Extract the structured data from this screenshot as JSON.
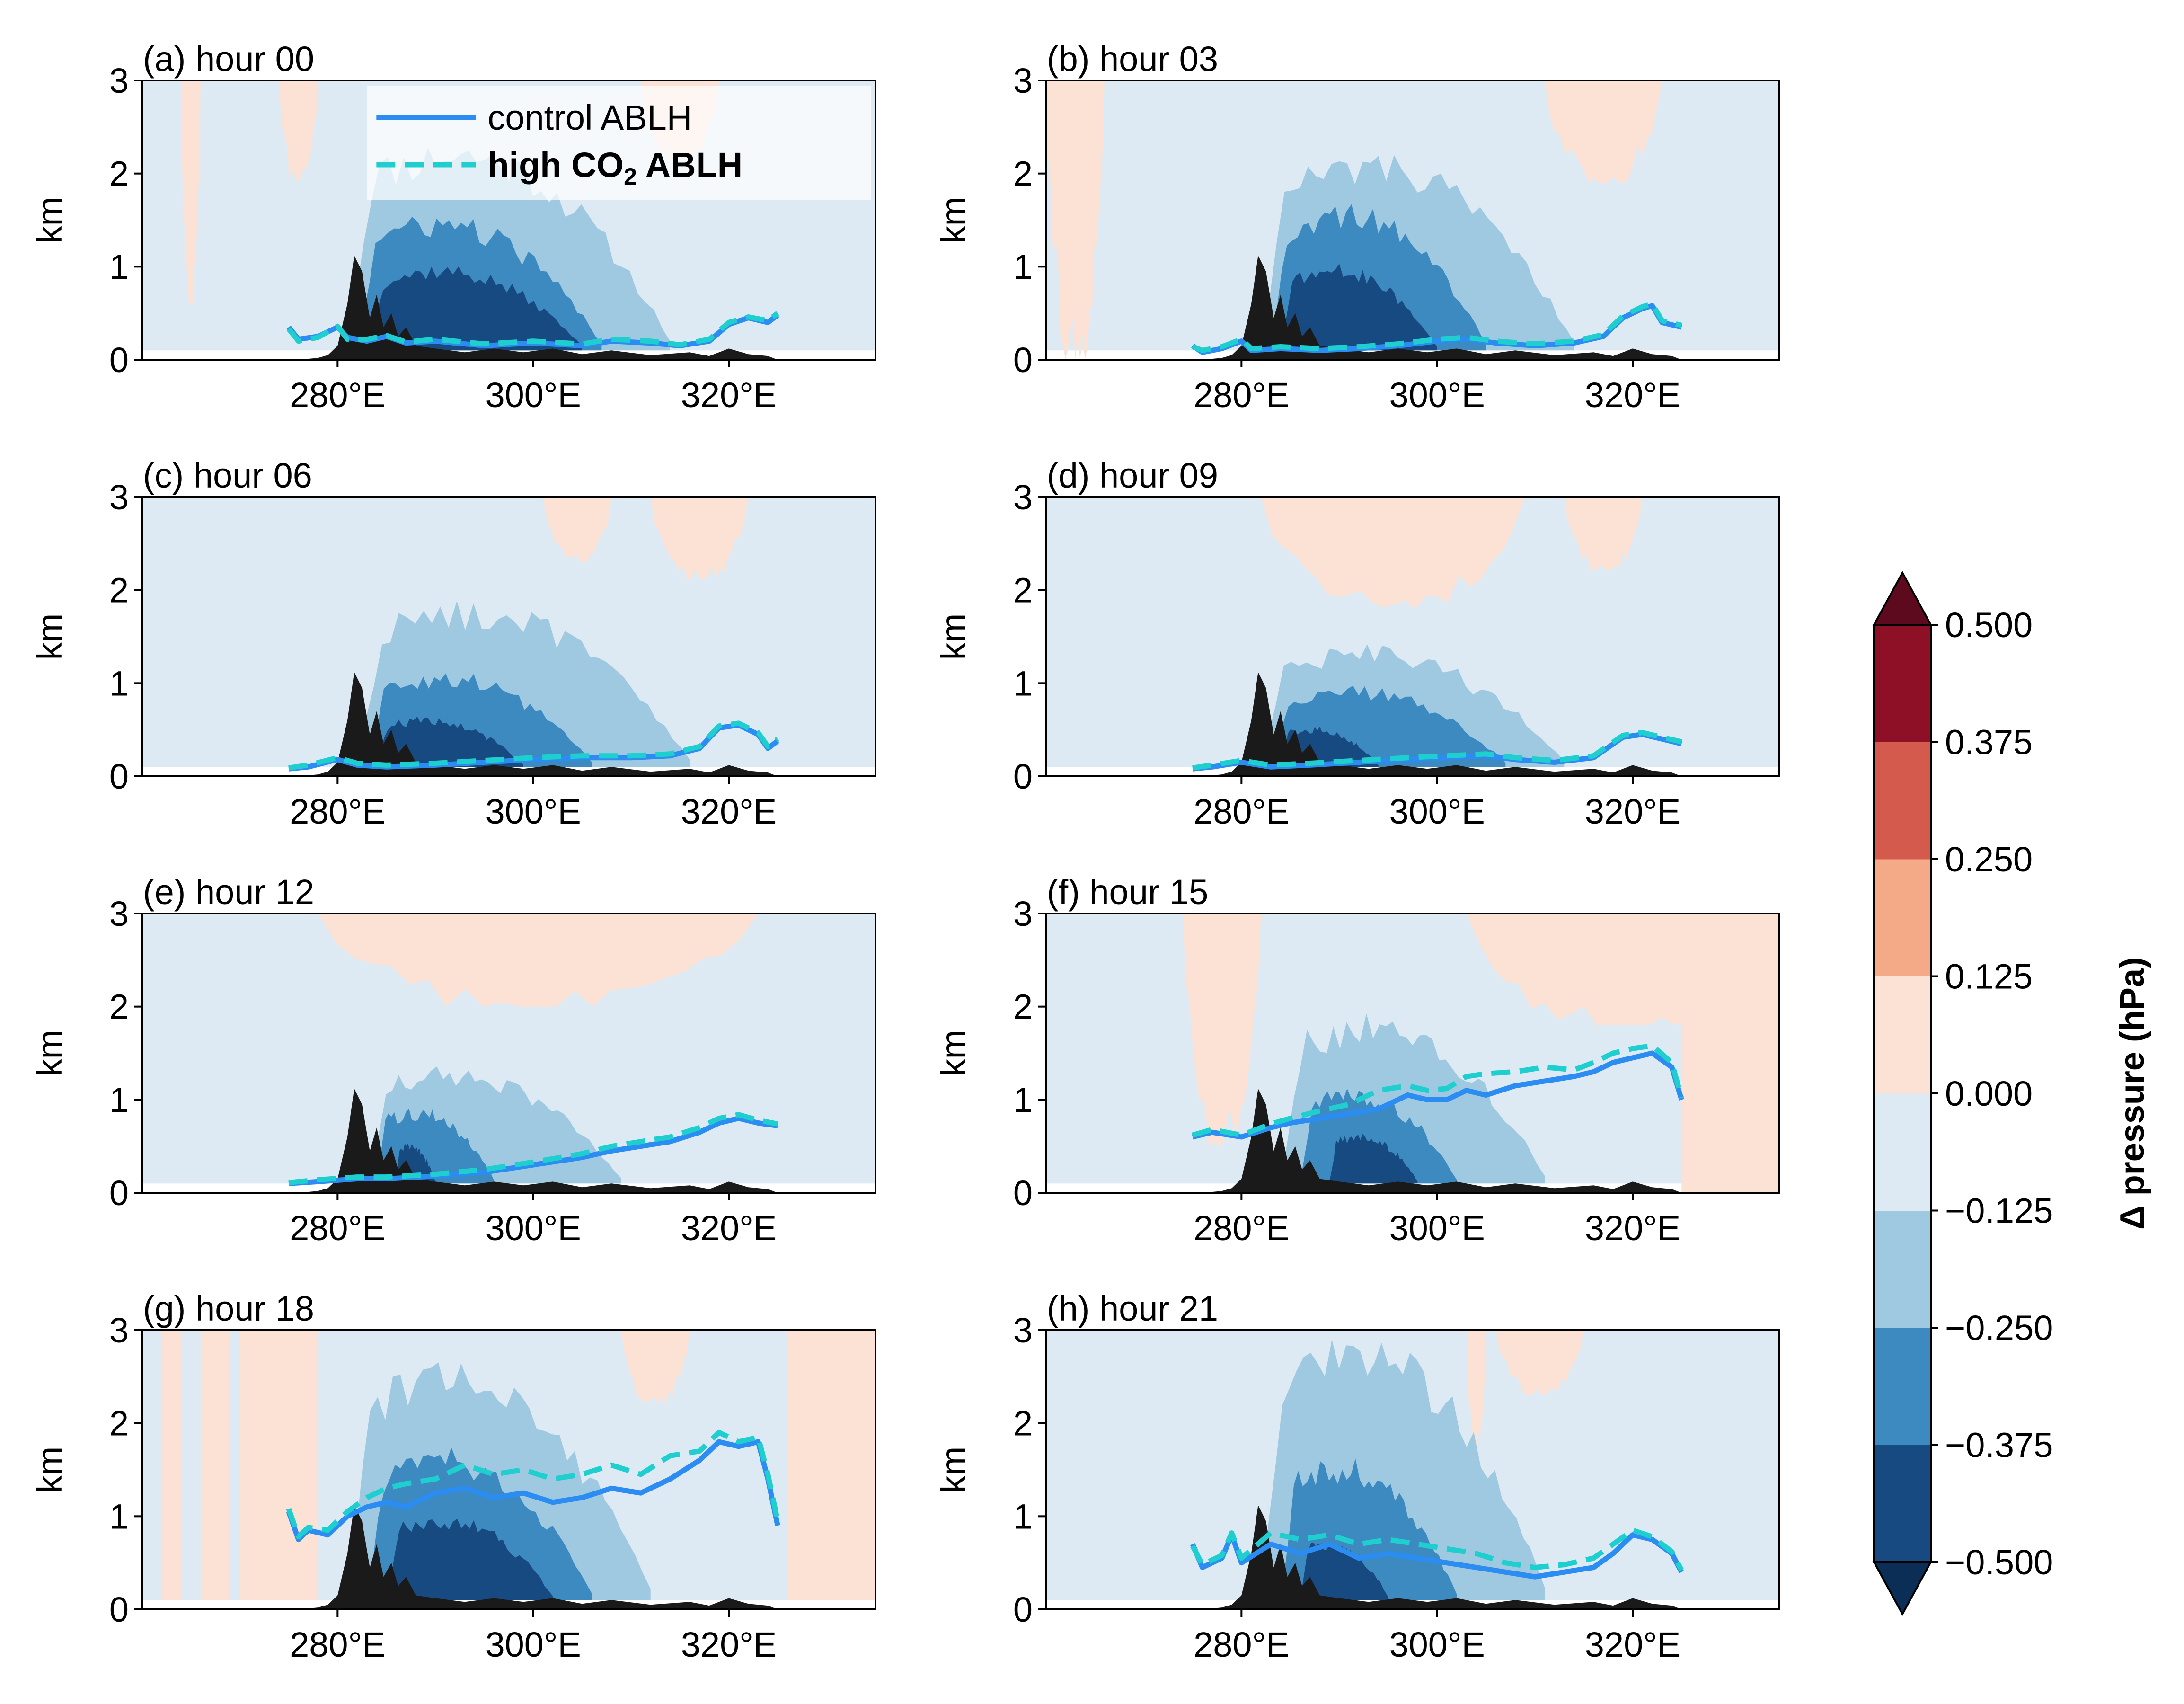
{
  "chart_data": {
    "type": "filled-contour cross-section panels",
    "panels": [
      {
        "title": "(a) hour 00",
        "hour": 0
      },
      {
        "title": "(b) hour 03",
        "hour": 3
      },
      {
        "title": "(c) hour 06",
        "hour": 6
      },
      {
        "title": "(d) hour 09",
        "hour": 9
      },
      {
        "title": "(e) hour 12",
        "hour": 12
      },
      {
        "title": "(f) hour 15",
        "hour": 15
      },
      {
        "title": "(g) hour 18",
        "hour": 18
      },
      {
        "title": "(h) hour 21",
        "hour": 21
      }
    ],
    "xlim": [
      260,
      335
    ],
    "ylim": [
      0,
      3
    ],
    "x_ticks": [
      280,
      300,
      320
    ],
    "x_tick_labels": [
      "280°E",
      "300°E",
      "320°E"
    ],
    "y_ticks": [
      0,
      1,
      2,
      3
    ],
    "y_tick_labels": [
      "0",
      "1",
      "2",
      "3"
    ],
    "ylabel": "km",
    "legend": {
      "placement": "top-right of panel (a)",
      "entries": [
        {
          "label": "control ABLH",
          "style": "solid",
          "color": "#2b8cf2"
        },
        {
          "label_main": "high CO",
          "label_sub": "2",
          "label_tail": " ABLH",
          "style": "dashed",
          "color": "#1fcfcf"
        }
      ]
    },
    "colorbar": {
      "label": "Δ pressure (hPa)",
      "extend": "both",
      "levels": [
        -0.5,
        -0.375,
        -0.25,
        -0.125,
        0.0,
        0.125,
        0.25,
        0.375,
        0.5
      ],
      "tick_labels": [
        "−0.500",
        "−0.375",
        "−0.250",
        "−0.125",
        "0.000",
        "0.125",
        "0.250",
        "0.375",
        "0.500"
      ],
      "colors": [
        "#174a80",
        "#3c8ac0",
        "#9fc9e0",
        "#ddeaf3",
        "#fbe2d5",
        "#f4a987",
        "#d35a4c",
        "#8e1027"
      ],
      "extend_colors": {
        "under": "#0a2e55",
        "over": "#5e0a1e"
      }
    },
    "ablh_x_range": [
      275,
      325
    ],
    "ablh_control": {
      "0": [
        [
          275,
          0.35
        ],
        [
          276,
          0.22
        ],
        [
          278,
          0.25
        ],
        [
          280,
          0.35
        ],
        [
          281,
          0.24
        ],
        [
          283,
          0.2
        ],
        [
          285,
          0.25
        ],
        [
          287,
          0.18
        ],
        [
          290,
          0.2
        ],
        [
          295,
          0.15
        ],
        [
          300,
          0.18
        ],
        [
          305,
          0.15
        ],
        [
          308,
          0.2
        ],
        [
          312,
          0.18
        ],
        [
          315,
          0.15
        ],
        [
          318,
          0.2
        ],
        [
          320,
          0.38
        ],
        [
          322,
          0.45
        ],
        [
          324,
          0.4
        ],
        [
          325,
          0.48
        ]
      ],
      "3": [
        [
          275,
          0.15
        ],
        [
          276,
          0.08
        ],
        [
          278,
          0.12
        ],
        [
          280,
          0.2
        ],
        [
          281,
          0.1
        ],
        [
          284,
          0.12
        ],
        [
          288,
          0.1
        ],
        [
          292,
          0.12
        ],
        [
          296,
          0.15
        ],
        [
          300,
          0.2
        ],
        [
          303,
          0.22
        ],
        [
          306,
          0.18
        ],
        [
          310,
          0.15
        ],
        [
          314,
          0.18
        ],
        [
          317,
          0.25
        ],
        [
          319,
          0.45
        ],
        [
          321,
          0.55
        ],
        [
          322,
          0.58
        ],
        [
          323,
          0.4
        ],
        [
          325,
          0.35
        ]
      ],
      "6": [
        [
          275,
          0.08
        ],
        [
          277,
          0.1
        ],
        [
          280,
          0.18
        ],
        [
          282,
          0.12
        ],
        [
          285,
          0.1
        ],
        [
          290,
          0.12
        ],
        [
          295,
          0.15
        ],
        [
          300,
          0.18
        ],
        [
          305,
          0.2
        ],
        [
          310,
          0.2
        ],
        [
          314,
          0.22
        ],
        [
          317,
          0.3
        ],
        [
          319,
          0.52
        ],
        [
          321,
          0.55
        ],
        [
          323,
          0.45
        ],
        [
          324,
          0.3
        ],
        [
          325,
          0.38
        ]
      ],
      "9": [
        [
          275,
          0.08
        ],
        [
          277,
          0.1
        ],
        [
          280,
          0.15
        ],
        [
          283,
          0.1
        ],
        [
          287,
          0.12
        ],
        [
          292,
          0.15
        ],
        [
          297,
          0.18
        ],
        [
          301,
          0.2
        ],
        [
          305,
          0.22
        ],
        [
          308,
          0.18
        ],
        [
          312,
          0.15
        ],
        [
          316,
          0.2
        ],
        [
          319,
          0.42
        ],
        [
          321,
          0.45
        ],
        [
          323,
          0.4
        ],
        [
          325,
          0.35
        ]
      ],
      "12": [
        [
          275,
          0.1
        ],
        [
          278,
          0.12
        ],
        [
          282,
          0.15
        ],
        [
          285,
          0.15
        ],
        [
          290,
          0.18
        ],
        [
          295,
          0.22
        ],
        [
          300,
          0.3
        ],
        [
          305,
          0.38
        ],
        [
          308,
          0.45
        ],
        [
          311,
          0.5
        ],
        [
          314,
          0.55
        ],
        [
          317,
          0.65
        ],
        [
          319,
          0.75
        ],
        [
          321,
          0.8
        ],
        [
          323,
          0.75
        ],
        [
          325,
          0.72
        ]
      ],
      "15": [
        [
          275,
          0.6
        ],
        [
          277,
          0.65
        ],
        [
          280,
          0.6
        ],
        [
          283,
          0.7
        ],
        [
          285,
          0.75
        ],
        [
          288,
          0.8
        ],
        [
          291,
          0.85
        ],
        [
          294,
          0.9
        ],
        [
          297,
          1.05
        ],
        [
          299,
          1.0
        ],
        [
          301,
          1.0
        ],
        [
          303,
          1.1
        ],
        [
          305,
          1.05
        ],
        [
          308,
          1.15
        ],
        [
          311,
          1.2
        ],
        [
          314,
          1.25
        ],
        [
          316,
          1.3
        ],
        [
          318,
          1.4
        ],
        [
          320,
          1.45
        ],
        [
          322,
          1.5
        ],
        [
          324,
          1.35
        ],
        [
          325,
          1.0
        ]
      ],
      "18": [
        [
          275,
          1.05
        ],
        [
          276,
          0.75
        ],
        [
          277,
          0.85
        ],
        [
          279,
          0.8
        ],
        [
          281,
          1.0
        ],
        [
          283,
          1.1
        ],
        [
          285,
          1.15
        ],
        [
          287,
          1.1
        ],
        [
          290,
          1.25
        ],
        [
          293,
          1.3
        ],
        [
          296,
          1.2
        ],
        [
          299,
          1.25
        ],
        [
          302,
          1.15
        ],
        [
          305,
          1.2
        ],
        [
          308,
          1.3
        ],
        [
          311,
          1.25
        ],
        [
          314,
          1.4
        ],
        [
          317,
          1.6
        ],
        [
          319,
          1.8
        ],
        [
          321,
          1.75
        ],
        [
          323,
          1.8
        ],
        [
          324,
          1.4
        ],
        [
          325,
          0.9
        ]
      ],
      "21": [
        [
          275,
          0.7
        ],
        [
          276,
          0.45
        ],
        [
          278,
          0.55
        ],
        [
          279,
          0.8
        ],
        [
          280,
          0.5
        ],
        [
          283,
          0.7
        ],
        [
          286,
          0.6
        ],
        [
          289,
          0.7
        ],
        [
          292,
          0.55
        ],
        [
          295,
          0.6
        ],
        [
          298,
          0.55
        ],
        [
          301,
          0.5
        ],
        [
          304,
          0.45
        ],
        [
          307,
          0.4
        ],
        [
          310,
          0.35
        ],
        [
          313,
          0.4
        ],
        [
          316,
          0.45
        ],
        [
          318,
          0.6
        ],
        [
          320,
          0.8
        ],
        [
          322,
          0.75
        ],
        [
          324,
          0.6
        ],
        [
          325,
          0.4
        ]
      ]
    },
    "ablh_high_co2": {
      "0": [
        [
          275,
          0.33
        ],
        [
          276,
          0.2
        ],
        [
          278,
          0.24
        ],
        [
          280,
          0.36
        ],
        [
          281,
          0.22
        ],
        [
          283,
          0.22
        ],
        [
          285,
          0.26
        ],
        [
          287,
          0.19
        ],
        [
          290,
          0.22
        ],
        [
          295,
          0.17
        ],
        [
          300,
          0.2
        ],
        [
          305,
          0.17
        ],
        [
          308,
          0.22
        ],
        [
          312,
          0.2
        ],
        [
          315,
          0.16
        ],
        [
          318,
          0.22
        ],
        [
          320,
          0.4
        ],
        [
          322,
          0.46
        ],
        [
          324,
          0.42
        ],
        [
          325,
          0.5
        ]
      ],
      "3": [
        [
          275,
          0.14
        ],
        [
          276,
          0.1
        ],
        [
          278,
          0.14
        ],
        [
          280,
          0.22
        ],
        [
          281,
          0.12
        ],
        [
          284,
          0.14
        ],
        [
          288,
          0.12
        ],
        [
          292,
          0.14
        ],
        [
          296,
          0.17
        ],
        [
          300,
          0.22
        ],
        [
          303,
          0.24
        ],
        [
          306,
          0.2
        ],
        [
          310,
          0.17
        ],
        [
          314,
          0.2
        ],
        [
          317,
          0.27
        ],
        [
          319,
          0.47
        ],
        [
          321,
          0.57
        ],
        [
          322,
          0.6
        ],
        [
          323,
          0.42
        ],
        [
          325,
          0.37
        ]
      ],
      "6": [
        [
          275,
          0.09
        ],
        [
          277,
          0.12
        ],
        [
          280,
          0.2
        ],
        [
          282,
          0.14
        ],
        [
          285,
          0.12
        ],
        [
          290,
          0.14
        ],
        [
          295,
          0.17
        ],
        [
          300,
          0.2
        ],
        [
          305,
          0.22
        ],
        [
          310,
          0.22
        ],
        [
          314,
          0.24
        ],
        [
          317,
          0.32
        ],
        [
          319,
          0.54
        ],
        [
          321,
          0.57
        ],
        [
          323,
          0.47
        ],
        [
          324,
          0.32
        ],
        [
          325,
          0.4
        ]
      ],
      "9": [
        [
          275,
          0.09
        ],
        [
          277,
          0.12
        ],
        [
          280,
          0.17
        ],
        [
          283,
          0.12
        ],
        [
          287,
          0.14
        ],
        [
          292,
          0.17
        ],
        [
          297,
          0.2
        ],
        [
          301,
          0.22
        ],
        [
          305,
          0.24
        ],
        [
          308,
          0.2
        ],
        [
          312,
          0.17
        ],
        [
          316,
          0.22
        ],
        [
          319,
          0.44
        ],
        [
          321,
          0.47
        ],
        [
          323,
          0.42
        ],
        [
          325,
          0.37
        ]
      ],
      "12": [
        [
          275,
          0.11
        ],
        [
          278,
          0.14
        ],
        [
          282,
          0.17
        ],
        [
          285,
          0.17
        ],
        [
          290,
          0.2
        ],
        [
          295,
          0.25
        ],
        [
          300,
          0.33
        ],
        [
          305,
          0.42
        ],
        [
          308,
          0.5
        ],
        [
          311,
          0.55
        ],
        [
          314,
          0.6
        ],
        [
          317,
          0.7
        ],
        [
          319,
          0.8
        ],
        [
          321,
          0.84
        ],
        [
          323,
          0.78
        ],
        [
          325,
          0.74
        ]
      ],
      "15": [
        [
          275,
          0.62
        ],
        [
          277,
          0.68
        ],
        [
          280,
          0.62
        ],
        [
          283,
          0.74
        ],
        [
          285,
          0.8
        ],
        [
          288,
          0.88
        ],
        [
          291,
          0.95
        ],
        [
          294,
          1.1
        ],
        [
          297,
          1.15
        ],
        [
          299,
          1.1
        ],
        [
          301,
          1.12
        ],
        [
          303,
          1.25
        ],
        [
          305,
          1.28
        ],
        [
          308,
          1.3
        ],
        [
          311,
          1.35
        ],
        [
          314,
          1.32
        ],
        [
          316,
          1.4
        ],
        [
          318,
          1.5
        ],
        [
          320,
          1.55
        ],
        [
          322,
          1.58
        ],
        [
          324,
          1.4
        ],
        [
          325,
          1.02
        ]
      ],
      "18": [
        [
          275,
          1.08
        ],
        [
          276,
          0.78
        ],
        [
          277,
          0.88
        ],
        [
          279,
          0.85
        ],
        [
          281,
          1.05
        ],
        [
          283,
          1.2
        ],
        [
          285,
          1.3
        ],
        [
          287,
          1.35
        ],
        [
          290,
          1.4
        ],
        [
          293,
          1.55
        ],
        [
          296,
          1.45
        ],
        [
          299,
          1.5
        ],
        [
          302,
          1.4
        ],
        [
          305,
          1.45
        ],
        [
          308,
          1.55
        ],
        [
          311,
          1.45
        ],
        [
          314,
          1.65
        ],
        [
          317,
          1.7
        ],
        [
          319,
          1.9
        ],
        [
          321,
          1.8
        ],
        [
          323,
          1.85
        ],
        [
          324,
          1.45
        ],
        [
          325,
          0.95
        ]
      ],
      "21": [
        [
          275,
          0.68
        ],
        [
          276,
          0.48
        ],
        [
          278,
          0.58
        ],
        [
          279,
          0.82
        ],
        [
          280,
          0.55
        ],
        [
          283,
          0.82
        ],
        [
          286,
          0.75
        ],
        [
          289,
          0.8
        ],
        [
          292,
          0.7
        ],
        [
          295,
          0.75
        ],
        [
          298,
          0.7
        ],
        [
          301,
          0.65
        ],
        [
          304,
          0.6
        ],
        [
          307,
          0.5
        ],
        [
          310,
          0.45
        ],
        [
          313,
          0.48
        ],
        [
          316,
          0.55
        ],
        [
          318,
          0.7
        ],
        [
          320,
          0.85
        ],
        [
          322,
          0.78
        ],
        [
          324,
          0.62
        ],
        [
          325,
          0.42
        ]
      ]
    }
  }
}
